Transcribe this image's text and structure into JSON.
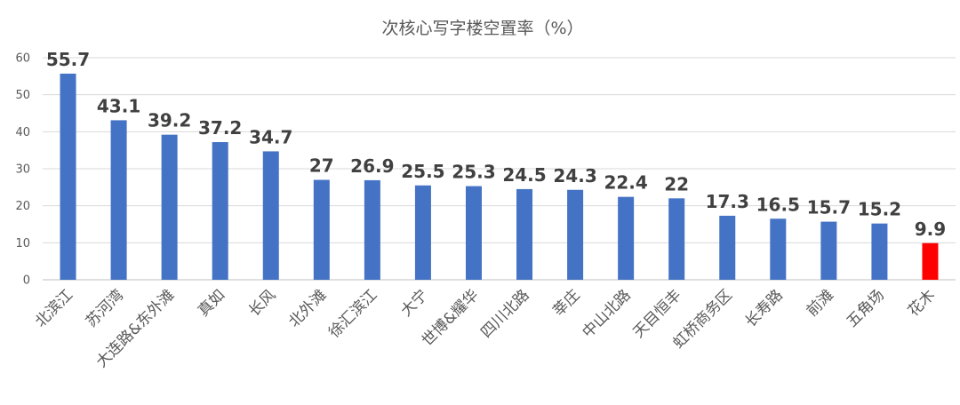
{
  "chart_data": {
    "type": "bar",
    "title": "次核心写字楼空置率（%）",
    "xlabel": "",
    "ylabel": "",
    "ylim": [
      0,
      60
    ],
    "yticks": [
      0,
      10,
      20,
      30,
      40,
      50,
      60
    ],
    "grid": true,
    "legend": "none",
    "categories": [
      "北滨江",
      "苏河湾",
      "大连路&东外滩",
      "真如",
      "长风",
      "北外滩",
      "徐汇滨江",
      "大宁",
      "世博&耀华",
      "四川北路",
      "莘庄",
      "中山北路",
      "天目恒丰",
      "虹桥商务区",
      "长寿路",
      "前滩",
      "五角场",
      "花木"
    ],
    "values": [
      55.7,
      43.1,
      39.2,
      37.2,
      34.7,
      27,
      26.9,
      25.5,
      25.3,
      24.5,
      24.3,
      22.4,
      22,
      17.3,
      16.5,
      15.7,
      15.2,
      9.9
    ],
    "value_labels": [
      "55.7",
      "43.1",
      "39.2",
      "37.2",
      "34.7",
      "27",
      "26.9",
      "25.5",
      "25.3",
      "24.5",
      "24.3",
      "22.4",
      "22",
      "17.3",
      "16.5",
      "15.7",
      "15.2",
      "9.9"
    ],
    "bar_color": "#4472C4",
    "highlight_color": "#FF0000",
    "highlight_category": "花木"
  }
}
